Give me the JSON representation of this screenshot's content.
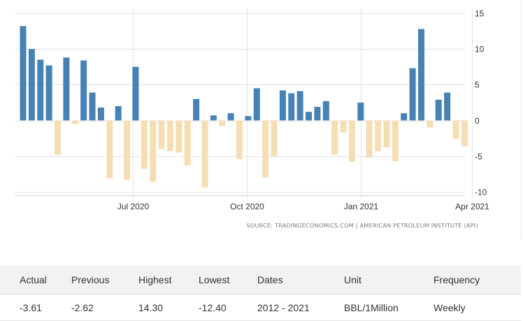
{
  "chart_data": {
    "type": "bar",
    "y_ticks": [
      "15",
      "10",
      "5",
      "0",
      "-5",
      "-10"
    ],
    "y_tick_values": [
      15,
      10,
      5,
      0,
      -5,
      -10
    ],
    "ylim": [
      -10.5,
      15
    ],
    "x_tick_labels": [
      {
        "label": "Jul 2020",
        "date": "2020-07-01"
      },
      {
        "label": "Oct 2020",
        "date": "2020-10-01"
      },
      {
        "label": "Jan 2021",
        "date": "2021-01-01"
      },
      {
        "label": "Apr 2021",
        "date": "2021-04-01"
      }
    ],
    "values": [
      13.2,
      10.0,
      8.5,
      7.7,
      -4.8,
      8.8,
      -0.5,
      8.4,
      3.9,
      1.8,
      -8.1,
      2.0,
      -8.3,
      7.5,
      -6.8,
      -8.6,
      -4.0,
      -4.3,
      -4.5,
      -6.3,
      3.0,
      -9.4,
      0.7,
      -0.8,
      1.0,
      -5.4,
      0.6,
      4.5,
      -8.0,
      -5.0,
      4.2,
      3.8,
      4.1,
      1.2,
      1.9,
      2.7,
      -4.8,
      -1.7,
      -5.8,
      2.5,
      -5.2,
      -4.3,
      -3.8,
      -5.7,
      1.0,
      7.3,
      12.8,
      -1.0,
      2.9,
      3.9,
      -2.6,
      -3.6
    ],
    "positive_color": "#4682b4",
    "negative_color": "#f5deb3",
    "grid": true
  },
  "source_text": "SOURCE: TRADINGECONOMICS.COM | AMERICAN PETROLEUM INSTITUTE (API)",
  "table": {
    "headers": [
      "Actual",
      "Previous",
      "Highest",
      "Lowest",
      "Dates",
      "Unit",
      "Frequency"
    ],
    "row": [
      "-3.61",
      "-2.62",
      "14.30",
      "-12.40",
      "2012 - 2021",
      "BBL/1Million",
      "Weekly"
    ]
  }
}
